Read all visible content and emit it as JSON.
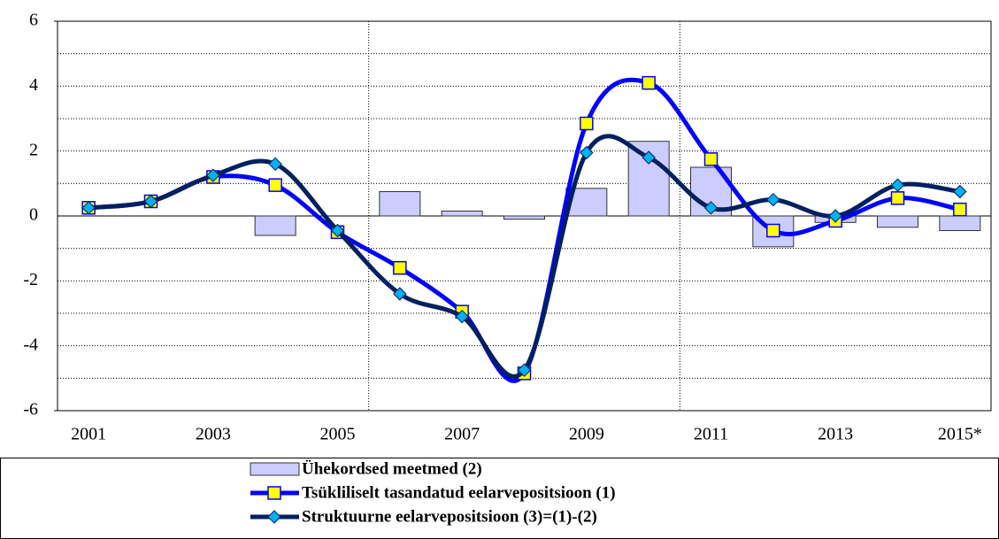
{
  "chart_data": {
    "type": "bar_line",
    "categories": [
      "2001",
      null,
      "2003",
      null,
      "2005",
      null,
      "2007",
      null,
      "2009",
      null,
      "2011",
      null,
      "2013",
      null,
      "2015*"
    ],
    "series": [
      {
        "name": "Ühekordsed meetmed (2)",
        "type": "bar",
        "color": "#ccccff",
        "values": [
          0,
          0,
          0,
          -0.6,
          0,
          0.75,
          0.15,
          -0.1,
          0.85,
          2.3,
          1.5,
          -0.95,
          -0.2,
          -0.35,
          -0.45
        ]
      },
      {
        "name": "Tsükliliselt tasandatud eelarvepositsioon (1)",
        "type": "line",
        "color": "#0000ff",
        "marker": "square",
        "marker_color": "#ffff00",
        "values": [
          0.25,
          0.45,
          1.2,
          0.95,
          -0.5,
          -1.6,
          -2.95,
          -4.85,
          2.85,
          4.1,
          1.75,
          -0.45,
          -0.15,
          0.55,
          0.2
        ]
      },
      {
        "name": "Struktuurne eelarvepositsioon (3)=(1)-(2)",
        "type": "line",
        "color": "#002060",
        "marker": "diamond",
        "marker_color": "#00b0f0",
        "values": [
          0.25,
          0.45,
          1.25,
          1.6,
          -0.45,
          -2.4,
          -3.1,
          -4.75,
          1.95,
          1.8,
          0.25,
          0.5,
          0.0,
          0.95,
          0.75
        ]
      }
    ],
    "ylim": [
      -6,
      6
    ],
    "yticks": [
      -6,
      -4,
      -2,
      0,
      2,
      4,
      6
    ],
    "minor_yticks": [
      -5,
      -3,
      -1,
      1,
      3,
      5
    ],
    "grid": true,
    "legend": "bottom"
  }
}
